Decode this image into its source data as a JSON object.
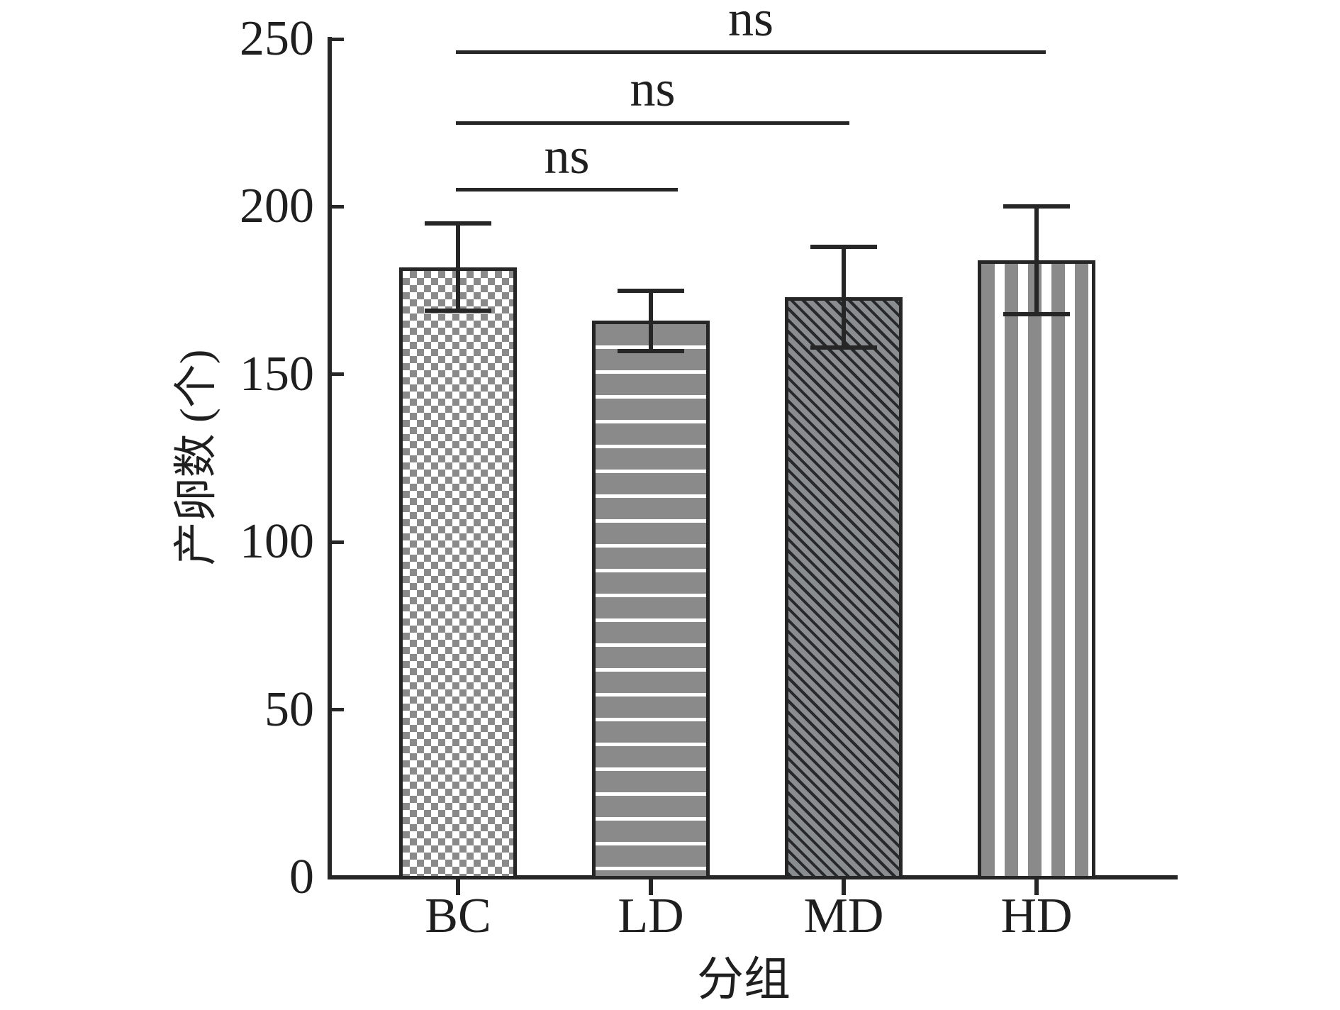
{
  "chart_data": {
    "type": "bar",
    "title": "",
    "xlabel": "分组",
    "ylabel": "产卵数 (个)",
    "categories": [
      "BC",
      "LD",
      "MD",
      "HD"
    ],
    "values": [
      182,
      166,
      173,
      184
    ],
    "error_bars": {
      "upper": [
        195,
        175,
        188,
        200
      ],
      "lower": [
        169,
        157,
        158,
        168
      ]
    },
    "ylim": [
      0,
      250
    ],
    "yticks": [
      0,
      50,
      100,
      150,
      200,
      250
    ],
    "grid": false,
    "legend": "none",
    "bar_patterns": [
      "checkerboard",
      "horizontal-stripes",
      "diagonal-hatch",
      "vertical-stripes"
    ],
    "annotations": [
      {
        "label": "ns",
        "from": "BC",
        "to": "LD",
        "y": 205
      },
      {
        "label": "ns",
        "from": "BC",
        "to": "MD",
        "y": 225
      },
      {
        "label": "ns",
        "from": "BC",
        "to": "HD",
        "y": 246
      }
    ],
    "colors": {
      "bar_fill_gray": "#8a8d8f",
      "stripe_gray": "#8a8a8a",
      "hatch_line": "#26282a",
      "axis_and_text": "#262626",
      "background": "#ffffff"
    }
  }
}
